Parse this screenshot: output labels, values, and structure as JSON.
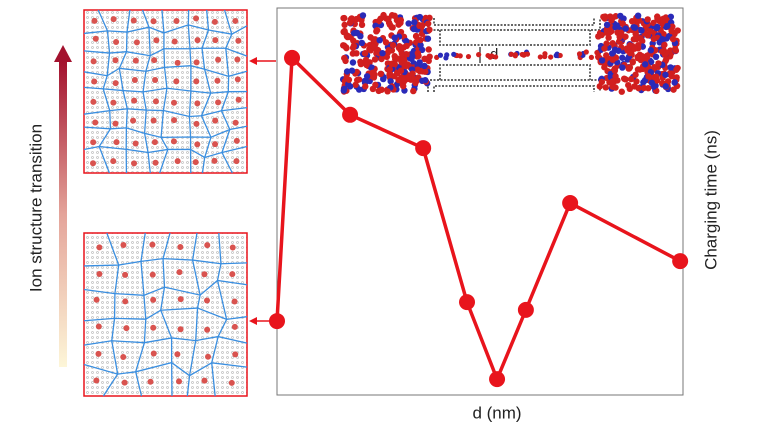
{
  "chart_data": {
    "type": "line",
    "x_label": "d (nm)",
    "y_label": "Charging time (ns)",
    "side_label": "Ion structure transition",
    "inset_label": "d",
    "x": [
      0,
      0.037,
      0.18,
      0.36,
      0.468,
      0.542,
      0.613,
      0.722,
      0.993
    ],
    "series": [
      {
        "color": "#e8141c",
        "values": [
          0.191,
          0.871,
          0.724,
          0.638,
          0.24,
          0.041,
          0.22,
          0.496,
          0.346
        ]
      }
    ],
    "xlim": [
      0,
      1
    ],
    "ylim": [
      0,
      1
    ]
  }
}
